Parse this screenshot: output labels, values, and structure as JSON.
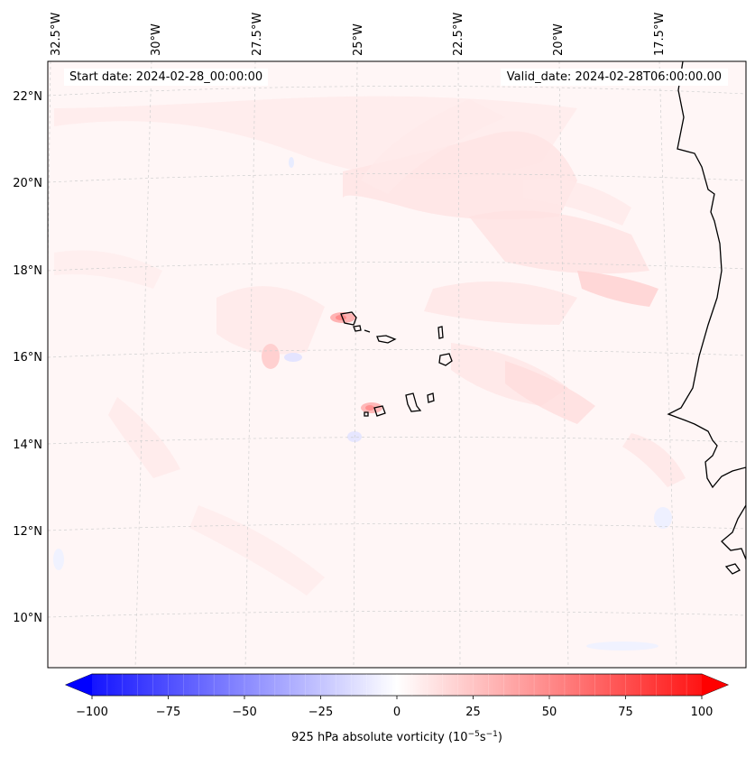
{
  "map": {
    "region": "Cabo Verde / West Africa coast",
    "lon_labels": [
      "32.5°W",
      "30°W",
      "27.5°W",
      "25°W",
      "22.5°W",
      "20°W",
      "17.5°W"
    ],
    "lat_labels": [
      "22°N",
      "20°N",
      "18°N",
      "16°N",
      "14°N",
      "12°N",
      "10°N"
    ],
    "gridlines": true
  },
  "header": {
    "start_date": "Start date: 2024-02-28_00:00:00",
    "valid_date": "Valid_date: 2024-02-28T06:00:00.00"
  },
  "colorbar": {
    "ticks": [
      "−100",
      "−75",
      "−50",
      "−25",
      "0",
      "25",
      "50",
      "75",
      "100"
    ],
    "label": "925 hPa absolute vorticity (10",
    "label_exp1": "−5",
    "label_mid": "s",
    "label_exp2": "−1",
    "label_end": ")",
    "colormap": "bwr",
    "min": -100,
    "max": 100,
    "levels": 40
  },
  "colors": {
    "background_field": "#fff7f7",
    "positive_max": "#ff0000",
    "negative_max": "#0000ff",
    "coastline": "#000000",
    "gridline": "#c8c8c8"
  }
}
